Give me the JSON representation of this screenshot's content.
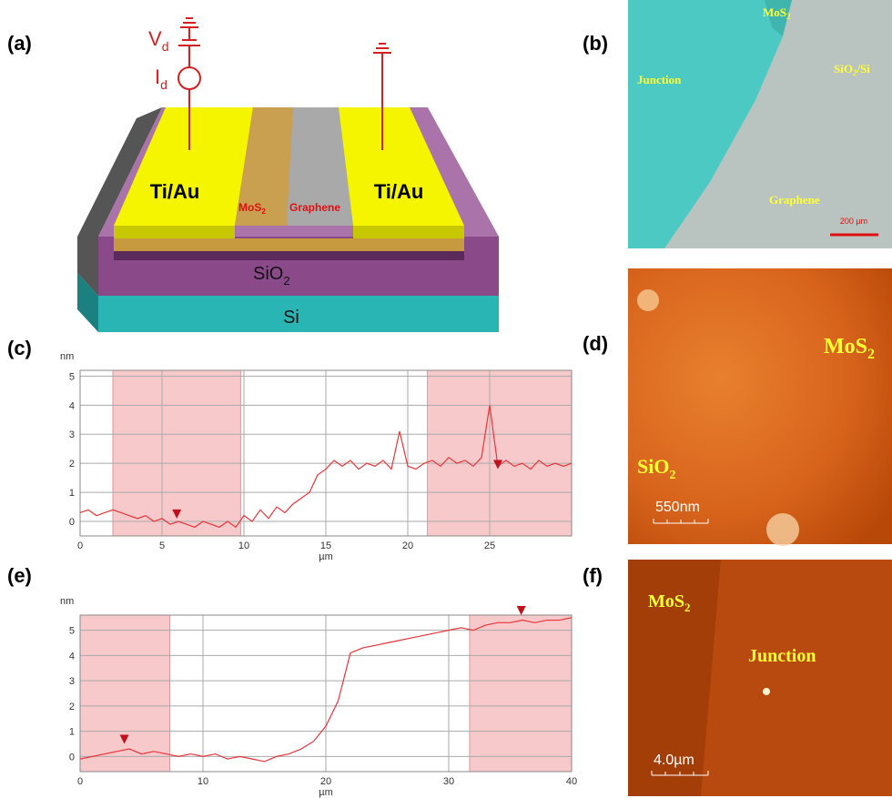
{
  "panels": {
    "a": {
      "label": "(a)",
      "vd": [
        "V",
        "d"
      ],
      "id": [
        "I",
        "d"
      ],
      "electrode_left": "Ti/Au",
      "electrode_right": "Ti/Au",
      "mos2": [
        "MoS",
        "2"
      ],
      "graphene": "Graphene",
      "sio2": [
        "SiO",
        "2"
      ],
      "si": "Si"
    },
    "b": {
      "label": "(b)",
      "junction": "Junction",
      "mos2": [
        "MoS",
        "2"
      ],
      "substrate": [
        "SiO",
        "2",
        "/Si"
      ],
      "graphene": "Graphene",
      "scale": "200 µm"
    },
    "d": {
      "label": "(d)",
      "mos2": [
        "MoS",
        "2"
      ],
      "sio2": [
        "SiO",
        "2"
      ],
      "scale": "550nm"
    },
    "f": {
      "label": "(f)",
      "mos2": [
        "MoS",
        "2"
      ],
      "junction": "Junction",
      "scale": "4.0µm"
    }
  },
  "chart_data": [
    {
      "type": "line",
      "panel_label": "(c)",
      "xlabel": "µm",
      "ylabel": "nm",
      "xlim": [
        0,
        30
      ],
      "ylim": [
        -0.5,
        5.2
      ],
      "xticks": [
        0,
        5,
        10,
        15,
        20,
        25
      ],
      "yticks": [
        0,
        1,
        2,
        3,
        4,
        5
      ],
      "grid": true,
      "color": "#e8353a",
      "region_color": "#f7c9cb",
      "shaded_regions": [
        [
          2,
          9.8
        ],
        [
          21.2,
          30
        ]
      ],
      "markers": [
        {
          "x": 5.9,
          "y": 0.1
        },
        {
          "x": 25.5,
          "y": 1.8
        }
      ],
      "x": [
        0,
        0.5,
        1,
        1.5,
        2,
        2.5,
        3,
        3.5,
        4,
        4.5,
        5,
        5.5,
        6,
        6.5,
        7,
        7.5,
        8,
        8.5,
        9,
        9.5,
        10,
        10.5,
        11,
        11.5,
        12,
        12.5,
        13,
        13.5,
        14,
        14.5,
        15,
        15.5,
        16,
        16.5,
        17,
        17.5,
        18,
        18.5,
        19,
        19.5,
        20,
        20.5,
        21,
        21.5,
        22,
        22.5,
        23,
        23.5,
        24,
        24.5,
        25,
        25.5,
        26,
        26.5,
        27,
        27.5,
        28,
        28.5,
        29,
        29.5,
        30
      ],
      "values": [
        0.3,
        0.4,
        0.2,
        0.3,
        0.4,
        0.3,
        0.2,
        0.1,
        0.2,
        0.0,
        0.1,
        -0.1,
        0.0,
        -0.1,
        -0.2,
        0.0,
        -0.1,
        -0.2,
        0.0,
        -0.2,
        0.2,
        0.0,
        0.4,
        0.1,
        0.5,
        0.3,
        0.6,
        0.8,
        1.0,
        1.6,
        1.8,
        2.1,
        1.9,
        2.1,
        1.8,
        2.0,
        1.9,
        2.1,
        1.8,
        3.1,
        1.9,
        1.8,
        2.0,
        2.1,
        1.9,
        2.2,
        2.0,
        2.1,
        1.9,
        2.2,
        4.0,
        1.9,
        2.1,
        1.9,
        2.0,
        1.8,
        2.1,
        1.9,
        2.0,
        1.9,
        2.0
      ]
    },
    {
      "type": "line",
      "panel_label": "(e)",
      "xlabel": "µm",
      "ylabel": "nm",
      "xlim": [
        0,
        40
      ],
      "ylim": [
        -0.6,
        5.6
      ],
      "xticks": [
        0,
        10,
        20,
        30,
        40
      ],
      "yticks": [
        0,
        1,
        2,
        3,
        4,
        5
      ],
      "grid": true,
      "color": "#e8353a",
      "region_color": "#f7c9cb",
      "shaded_regions": [
        [
          0,
          7.3
        ],
        [
          31.7,
          40
        ]
      ],
      "markers": [
        {
          "x": 3.6,
          "y": 0.5
        },
        {
          "x": 35.9,
          "y": 5.6
        }
      ],
      "x": [
        0,
        1,
        2,
        3,
        4,
        5,
        6,
        7,
        8,
        9,
        10,
        11,
        12,
        13,
        14,
        15,
        16,
        17,
        18,
        19,
        20,
        21,
        22,
        23,
        24,
        25,
        26,
        27,
        28,
        29,
        30,
        31,
        32,
        33,
        34,
        35,
        36,
        37,
        38,
        39,
        40
      ],
      "values": [
        -0.1,
        0.0,
        0.1,
        0.2,
        0.3,
        0.1,
        0.2,
        0.1,
        0.0,
        0.1,
        0.0,
        0.1,
        -0.1,
        0.0,
        -0.1,
        -0.2,
        0.0,
        0.1,
        0.3,
        0.6,
        1.2,
        2.2,
        4.1,
        4.3,
        4.4,
        4.5,
        4.6,
        4.7,
        4.8,
        4.9,
        5.0,
        5.1,
        5.0,
        5.2,
        5.3,
        5.3,
        5.4,
        5.3,
        5.4,
        5.4,
        5.5
      ]
    }
  ]
}
